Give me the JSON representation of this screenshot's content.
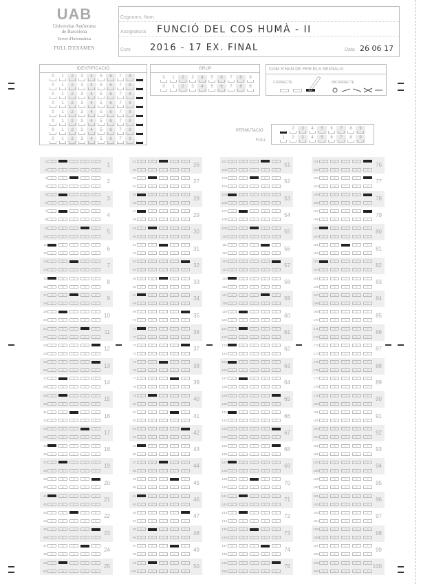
{
  "logo": {
    "mark": "UAB",
    "line1": "Universitat Autònoma",
    "line2": "de Barcelona",
    "line3": "Servei d'Informàtica",
    "form_title": "FULL D'EXAMEN"
  },
  "header": {
    "name_label": "Cognoms, Nom",
    "name_value": "",
    "subject_label": "Assignatura",
    "subject_value": "FUNCIÓ DEL COS HUMÀ - II",
    "course_label": "Curs",
    "course_value": "2016 - 17   EX. FINAL",
    "date_label": "Data",
    "date_value": "26 06 17"
  },
  "identification": {
    "title": "IDENTIFICACIÓ",
    "digits": [
      "0",
      "1",
      "2",
      "3",
      "4",
      "5",
      "6",
      "7",
      "8",
      "9"
    ],
    "marked": [
      9,
      9,
      9,
      9,
      9,
      9,
      9,
      9
    ]
  },
  "group": {
    "title": "GRUP",
    "marked": [
      null,
      null
    ]
  },
  "instructions": {
    "title": "COM S'HAN DE FER ELS SENYALS:",
    "correct": "CORRECTE",
    "incorrect": "INCORRECTE"
  },
  "permutation": {
    "perm_label": "PERMUTACIÓ",
    "sheet_label": "FULL",
    "digits": [
      "1",
      "2",
      "3",
      "4",
      "5",
      "6",
      "7",
      "8",
      "9"
    ],
    "perm_marked": 1,
    "sheet_marked": null
  },
  "options": [
    "A",
    "B",
    "C",
    "D",
    "E"
  ],
  "answers": [
    "BCBBDACACBDEEBBCDABEACEDB",
    "CBAABCECAEAECDBDEACDAEBDB",
    "DCABCDEADBBAABEAEEACBBCDE",
    "EEEEACA000000000000000000"
  ],
  "colors": {
    "mark": "#222222",
    "ink": "#333333",
    "print": "#999999"
  }
}
